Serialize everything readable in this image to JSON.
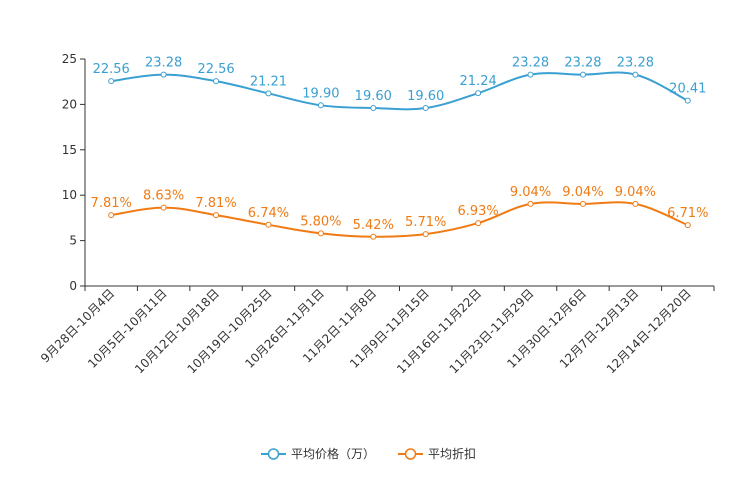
{
  "chart_data": {
    "type": "line",
    "title": "",
    "xlabel": "",
    "ylabel": "",
    "ylim": [
      0,
      25
    ],
    "yticks": [
      0,
      5,
      10,
      15,
      20,
      25
    ],
    "grid": false,
    "legend_position": "bottom-center",
    "categories": [
      "9月28日-10月4日",
      "10月5日-10月11日",
      "10月12日-10月18日",
      "10月19日-10月25日",
      "10月26日-11月1日",
      "11月2日-11月8日",
      "11月9日-11月15日",
      "11月16日-11月22日",
      "11月23日-11月29日",
      "11月30日-12月6日",
      "12月7日-12月13日",
      "12月14日-12月20日"
    ],
    "series": [
      {
        "name": "平均价格（万）",
        "color": "#3a9fd1",
        "values": [
          22.56,
          23.28,
          22.56,
          21.21,
          19.9,
          19.6,
          19.6,
          21.24,
          23.28,
          23.28,
          23.28,
          20.41
        ],
        "labels": [
          "22.56",
          "23.28",
          "22.56",
          "21.21",
          "19.90",
          "19.60",
          "19.60",
          "21.24",
          "23.28",
          "23.28",
          "23.28",
          "20.41"
        ]
      },
      {
        "name": "平均折扣",
        "color": "#f07b14",
        "values": [
          7.81,
          8.63,
          7.81,
          6.74,
          5.8,
          5.42,
          5.71,
          6.93,
          9.04,
          9.04,
          9.04,
          6.71
        ],
        "labels": [
          "7.81%",
          "8.63%",
          "7.81%",
          "6.74%",
          "5.80%",
          "5.42%",
          "5.71%",
          "6.93%",
          "9.04%",
          "9.04%",
          "9.04%",
          "6.71%"
        ]
      }
    ]
  }
}
